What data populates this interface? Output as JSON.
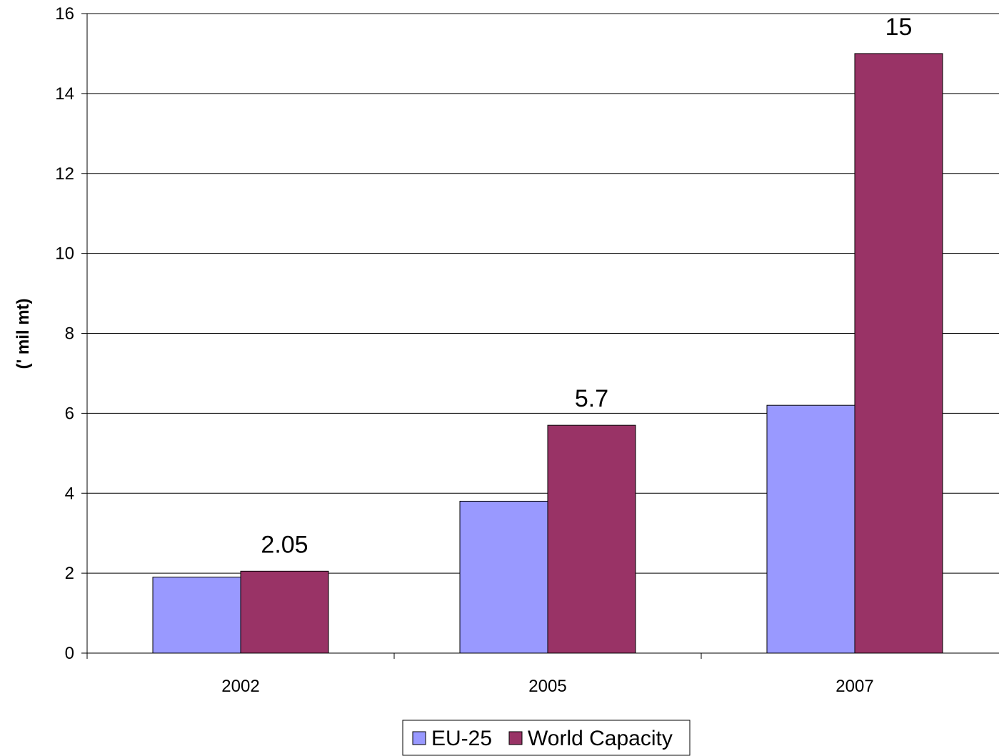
{
  "chart_data": {
    "type": "bar",
    "title": "",
    "xlabel": "",
    "ylabel": "(' mil mt)",
    "categories": [
      "2002",
      "2005",
      "2007"
    ],
    "ylim": [
      0,
      16
    ],
    "yticks": [
      0,
      2,
      4,
      6,
      8,
      10,
      12,
      14,
      16
    ],
    "grid": true,
    "legend_position": "bottom",
    "series": [
      {
        "name": "EU-25",
        "values": [
          1.9,
          3.8,
          6.2
        ],
        "color": "#9999ff",
        "show_labels": false
      },
      {
        "name": "World Capacity",
        "values": [
          2.05,
          5.7,
          15
        ],
        "color": "#993366",
        "show_labels": true
      }
    ],
    "data_labels": [
      "2.05",
      "5.7",
      "15"
    ]
  }
}
